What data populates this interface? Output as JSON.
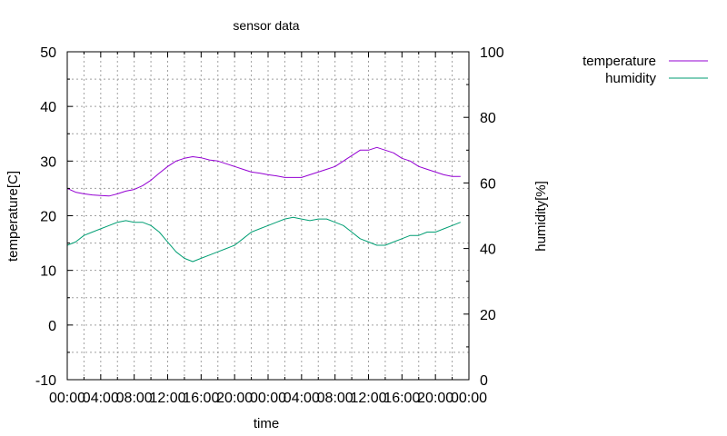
{
  "chart_data": {
    "type": "line",
    "title": "sensor data",
    "xlabel": "time",
    "ylabel": "temperature[C]",
    "y2label": "humidity[%]",
    "ylim": [
      -10,
      50
    ],
    "y2lim": [
      0,
      100
    ],
    "xlim_hours": [
      0,
      48
    ],
    "y_ticks": [
      "50",
      "40",
      "30",
      "20",
      "10",
      "0",
      "-10"
    ],
    "y2_ticks": [
      "100",
      "80",
      "60",
      "40",
      "20",
      "0"
    ],
    "x_ticks": [
      "00:00",
      "04:00",
      "08:00",
      "12:00",
      "16:00",
      "20:00",
      "00:00",
      "04:00",
      "08:00",
      "12:00",
      "16:00",
      "20:00",
      "00:00"
    ],
    "grid": true,
    "legend_position": "top-right, outside plot",
    "series": [
      {
        "name": "temperature",
        "axis": "left",
        "color": "#9400d3",
        "x_hours": [
          0,
          1,
          2,
          3,
          4,
          5,
          6,
          7,
          8,
          9,
          10,
          11,
          12,
          13,
          14,
          15,
          16,
          17,
          18,
          19,
          20,
          21,
          22,
          23,
          24,
          25,
          26,
          27,
          28,
          29,
          30,
          31,
          32,
          33,
          34,
          35,
          36,
          37,
          38,
          39,
          40,
          41,
          42,
          43,
          44,
          45,
          46,
          47
        ],
        "values": [
          25,
          24.3,
          24,
          23.8,
          23.7,
          23.6,
          24,
          24.5,
          24.8,
          25.5,
          26.5,
          27.8,
          29,
          30,
          30.5,
          30.8,
          30.6,
          30.2,
          30,
          29.5,
          29,
          28.5,
          28,
          27.8,
          27.5,
          27.3,
          27,
          27,
          27,
          27.5,
          28,
          28.5,
          29,
          30,
          31,
          32,
          32,
          32.5,
          32,
          31.5,
          30.5,
          30,
          29,
          28.5,
          28,
          27.5,
          27.2,
          27.2
        ]
      },
      {
        "name": "humidity",
        "axis": "right",
        "color": "#009e73",
        "x_hours": [
          0,
          1,
          2,
          3,
          4,
          5,
          6,
          7,
          8,
          9,
          10,
          11,
          12,
          13,
          14,
          15,
          16,
          17,
          18,
          19,
          20,
          21,
          22,
          23,
          24,
          25,
          26,
          27,
          28,
          29,
          30,
          31,
          32,
          33,
          34,
          35,
          36,
          37,
          38,
          39,
          40,
          41,
          42,
          43,
          44,
          45,
          46,
          47
        ],
        "values": [
          41,
          42,
          44,
          45,
          46,
          47,
          48,
          48.5,
          48,
          48,
          47,
          45,
          42,
          39,
          37,
          36,
          37,
          38,
          39,
          40,
          41,
          43,
          45,
          46,
          47,
          48,
          49,
          49.5,
          49,
          48.5,
          49,
          49,
          48,
          47,
          45,
          43,
          42,
          41,
          41,
          42,
          43,
          44,
          44,
          45,
          45,
          46,
          47,
          48
        ]
      }
    ]
  }
}
